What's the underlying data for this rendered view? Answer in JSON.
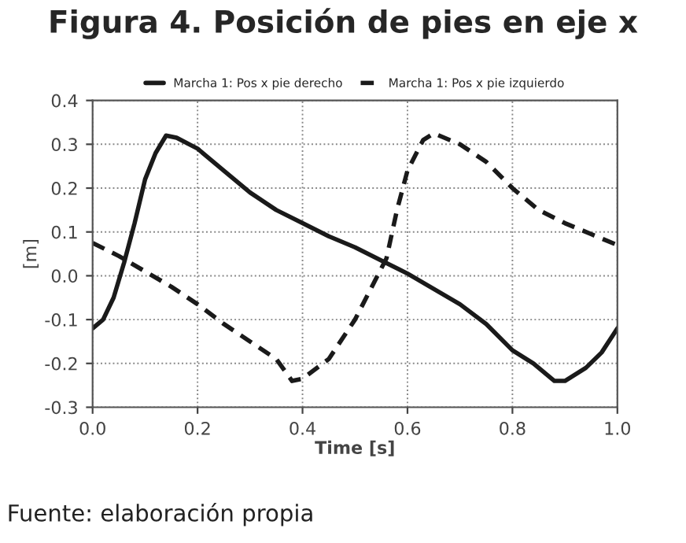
{
  "chart_data": {
    "type": "line",
    "title": "Figura 4. Posición de pies en eje x",
    "xlabel": "Time [s]",
    "ylabel": "[m]",
    "annotations": [
      "Fuente: elaboración propia"
    ],
    "legend": "top",
    "grid": true,
    "xlim": [
      0,
      1
    ],
    "ylim": [
      -0.3,
      0.4
    ],
    "xticks": [
      {
        "value": 0,
        "label": "0.0"
      },
      {
        "value": 0.2,
        "label": "0.2"
      },
      {
        "value": 0.4,
        "label": "0.4"
      },
      {
        "value": 0.6,
        "label": "0.6"
      },
      {
        "value": 0.8,
        "label": "0.8"
      },
      {
        "value": 1,
        "label": "1.0"
      }
    ],
    "yticks": [
      {
        "value": -0.3,
        "label": "-0.3"
      },
      {
        "value": -0.2,
        "label": "-0.2"
      },
      {
        "value": -0.1,
        "label": "-0.1"
      },
      {
        "value": 0,
        "label": "0.0"
      },
      {
        "value": 0.1,
        "label": "0.1"
      },
      {
        "value": 0.2,
        "label": "0.2"
      },
      {
        "value": 0.3,
        "label": "0.3"
      },
      {
        "value": 0.4,
        "label": "0.4"
      }
    ],
    "series": [
      {
        "name": "Marcha 1: Pos x pie derecho",
        "color": "#1a1a1a",
        "line_style": "solid",
        "x": [
          0,
          0.02,
          0.04,
          0.06,
          0.08,
          0.1,
          0.12,
          0.14,
          0.16,
          0.2,
          0.25,
          0.3,
          0.35,
          0.4,
          0.45,
          0.5,
          0.55,
          0.6,
          0.65,
          0.7,
          0.75,
          0.8,
          0.84,
          0.88,
          0.9,
          0.94,
          0.97,
          1.0
        ],
        "values": [
          -0.12,
          -0.1,
          -0.05,
          0.03,
          0.12,
          0.22,
          0.28,
          0.32,
          0.315,
          0.29,
          0.24,
          0.19,
          0.15,
          0.12,
          0.09,
          0.065,
          0.035,
          0.005,
          -0.03,
          -0.065,
          -0.11,
          -0.17,
          -0.2,
          -0.24,
          -0.24,
          -0.21,
          -0.175,
          -0.12
        ]
      },
      {
        "name": "Marcha 1: Pos x pie izquierdo",
        "color": "#1a1a1a",
        "line_style": "dashed",
        "x": [
          0,
          0.05,
          0.1,
          0.15,
          0.2,
          0.25,
          0.3,
          0.35,
          0.38,
          0.4,
          0.45,
          0.5,
          0.53,
          0.56,
          0.58,
          0.6,
          0.63,
          0.65,
          0.7,
          0.75,
          0.8,
          0.85,
          0.9,
          0.95,
          1.0
        ],
        "values": [
          0.075,
          0.045,
          0.01,
          -0.025,
          -0.065,
          -0.11,
          -0.15,
          -0.19,
          -0.24,
          -0.235,
          -0.19,
          -0.1,
          -0.03,
          0.04,
          0.15,
          0.24,
          0.31,
          0.325,
          0.3,
          0.26,
          0.2,
          0.15,
          0.12,
          0.095,
          0.07
        ]
      }
    ]
  }
}
